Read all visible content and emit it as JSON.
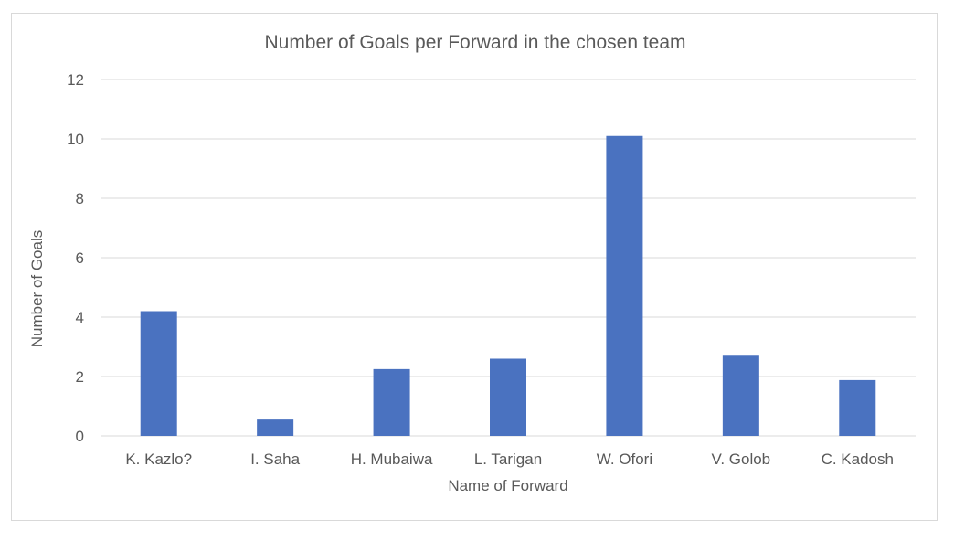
{
  "chart_data": {
    "type": "bar",
    "title": "Number of Goals per Forward in the chosen team",
    "xlabel": "Name of Forward",
    "ylabel": "Number of Goals",
    "categories": [
      "K. Kazlo?",
      "I. Saha",
      "H. Mubaiwa",
      "L. Tarigan",
      "W. Ofori",
      "V. Golob",
      "C. Kadosh"
    ],
    "values": [
      4.2,
      0.55,
      2.25,
      2.6,
      10.1,
      2.7,
      1.88
    ],
    "ylim": [
      0,
      12
    ],
    "yticks": [
      "0",
      "2",
      "4",
      "6",
      "8",
      "10",
      "12"
    ],
    "grid": true,
    "legend": "none",
    "bar_color": "#4a72c0",
    "grid_color": "#d9d9d9"
  }
}
